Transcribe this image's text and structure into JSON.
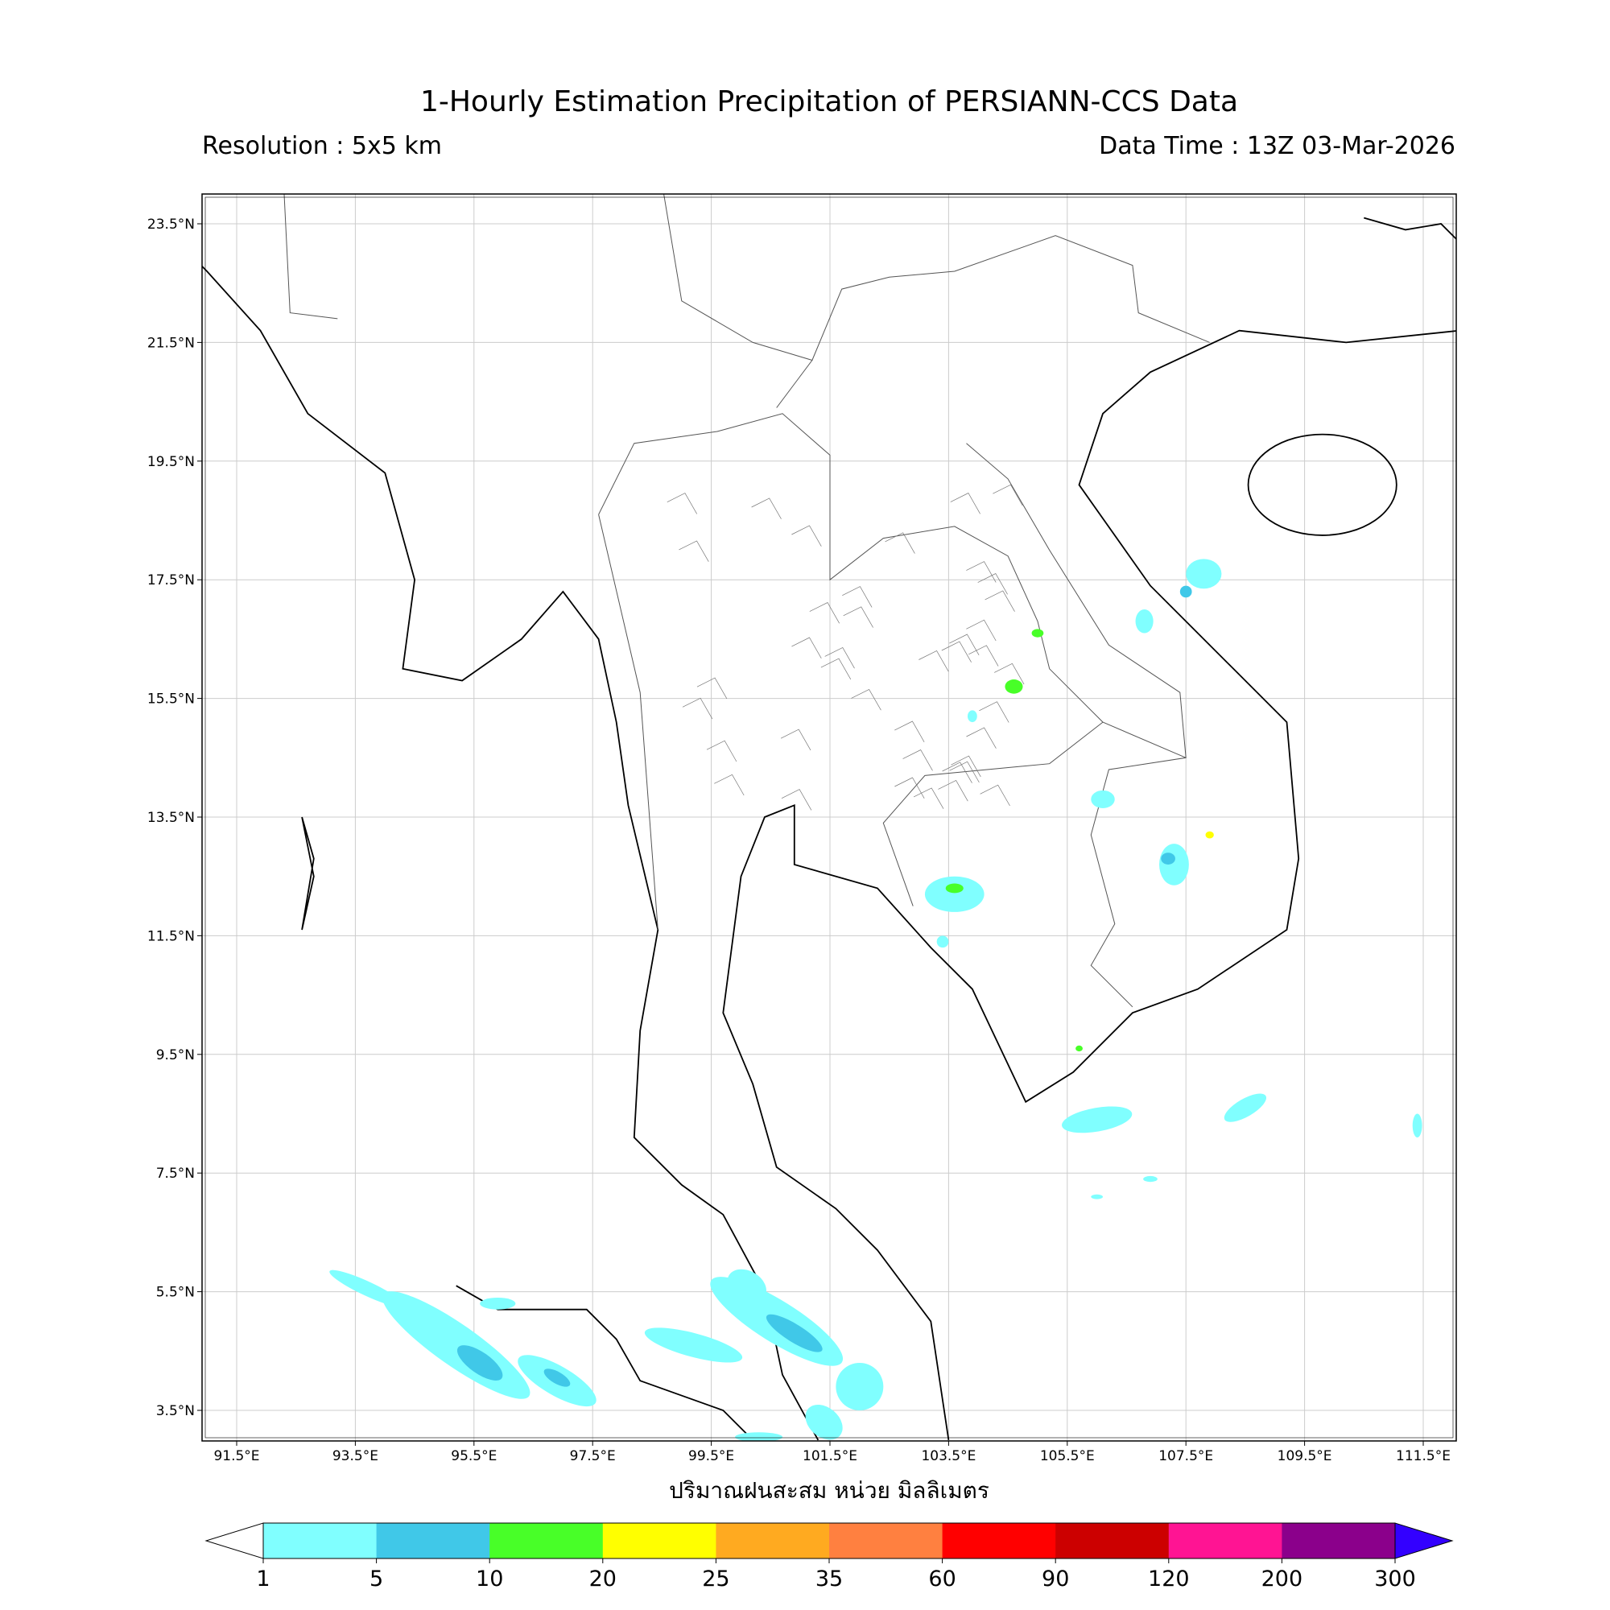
{
  "header": {
    "title": "1-Hourly Estimation Precipitation of PERSIANN-CCS Data",
    "resolution": "Resolution : 5x5 km",
    "data_time": "Data Time : 13Z 03-Mar-2026"
  },
  "map": {
    "extent_lon": [
      90.9,
      112.1
    ],
    "extent_lat": [
      3.0,
      24.0
    ],
    "lat_ticks": [
      {
        "v": 23.5,
        "label": "23.5°N"
      },
      {
        "v": 21.5,
        "label": "21.5°N"
      },
      {
        "v": 19.5,
        "label": "19.5°N"
      },
      {
        "v": 17.5,
        "label": "17.5°N"
      },
      {
        "v": 15.5,
        "label": "15.5°N"
      },
      {
        "v": 13.5,
        "label": "13.5°N"
      },
      {
        "v": 11.5,
        "label": "11.5°N"
      },
      {
        "v": 9.5,
        "label": "9.5°N"
      },
      {
        "v": 7.5,
        "label": "7.5°N"
      },
      {
        "v": 5.5,
        "label": "5.5°N"
      },
      {
        "v": 3.5,
        "label": "3.5°N"
      }
    ],
    "lon_ticks": [
      {
        "v": 91.5,
        "label": "91.5°E"
      },
      {
        "v": 93.5,
        "label": "93.5°E"
      },
      {
        "v": 95.5,
        "label": "95.5°E"
      },
      {
        "v": 97.5,
        "label": "97.5°E"
      },
      {
        "v": 99.5,
        "label": "99.5°E"
      },
      {
        "v": 101.5,
        "label": "101.5°E"
      },
      {
        "v": 103.5,
        "label": "103.5°E"
      },
      {
        "v": 105.5,
        "label": "105.5°E"
      },
      {
        "v": 107.5,
        "label": "107.5°E"
      },
      {
        "v": 109.5,
        "label": "109.5°E"
      },
      {
        "v": 111.5,
        "label": "111.5°E"
      }
    ],
    "gridlines": true
  },
  "colorbar": {
    "unit_label": "ปริมาณฝนสะสม หน่วย มิลลิเมตร",
    "levels": [
      "1",
      "5",
      "10",
      "20",
      "25",
      "35",
      "60",
      "90",
      "120",
      "200",
      "300"
    ],
    "colors": [
      "#80ffff",
      "#40c8e8",
      "#48ff28",
      "#ffff00",
      "#ffaa20",
      "#ff8040",
      "#ff0000",
      "#cc0000",
      "#ff1493",
      "#8b008b"
    ],
    "under_color": "#ffffff",
    "over_color": "#3300ff"
  }
}
